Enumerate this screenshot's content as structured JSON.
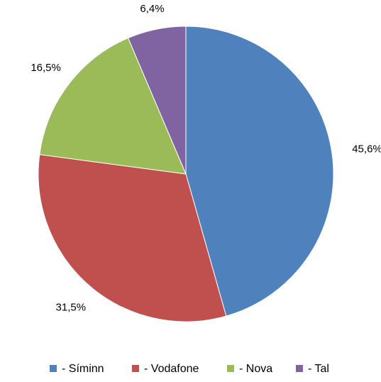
{
  "chart_data": {
    "type": "pie",
    "categories": [
      "- Síminn",
      "- Vodafone",
      "- Nova",
      "- Tal"
    ],
    "values": [
      45.6,
      31.5,
      16.5,
      6.4
    ],
    "data_labels": [
      "45,6%",
      "31,5%",
      "16,5%",
      "6,4%"
    ],
    "colors": [
      "#4F81BD",
      "#C0504D",
      "#9BBB59",
      "#8064A2"
    ],
    "start_angle_deg": 0,
    "direction": "clockwise",
    "legend_position": "bottom",
    "title": ""
  }
}
